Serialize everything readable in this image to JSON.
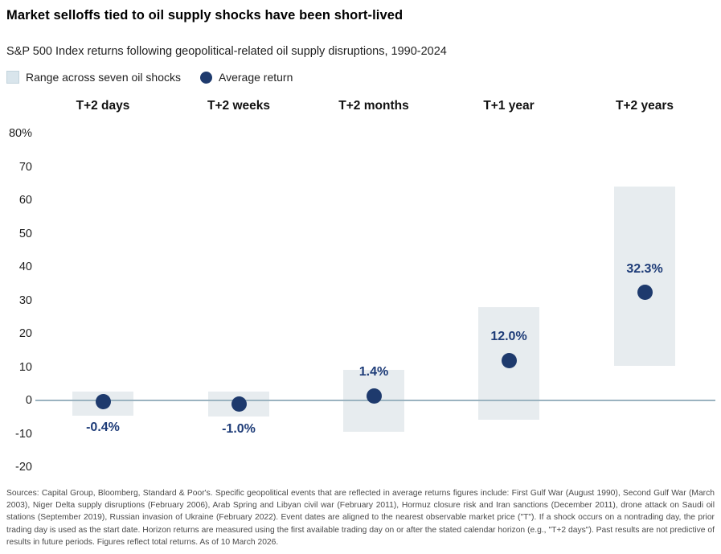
{
  "header": {
    "title": "Market selloffs tied to oil supply shocks have been short-lived",
    "subtitle": "S&P 500 Index returns following geopolitical-related oil supply disruptions, 1990-2024"
  },
  "legend": {
    "range_label": "Range across seven oil shocks",
    "average_label": "Average return"
  },
  "chart_data": {
    "type": "bar",
    "subtype": "floating-range-bar-with-average-points",
    "title": "S&P 500 Index returns following geopolitical-related oil supply disruptions, 1990-2024",
    "categories": [
      "T+2 days",
      "T+2 weeks",
      "T+2 months",
      "T+1 year",
      "T+2 years"
    ],
    "series": [
      {
        "name": "Range across seven oil shocks",
        "role": "range",
        "low": [
          -4.6,
          -4.8,
          -9.4,
          -5.8,
          10.4
        ],
        "high": [
          2.6,
          2.6,
          9.2,
          28.0,
          64.1
        ]
      },
      {
        "name": "Average return",
        "role": "point",
        "values": [
          -0.4,
          -1.0,
          1.4,
          12.0,
          32.3
        ]
      }
    ],
    "point_labels": [
      "-0.4%",
      "-1.0%",
      "1.4%",
      "12.0%",
      "32.3%"
    ],
    "y_ticks": [
      {
        "label": "80%",
        "value": 80
      },
      {
        "label": "70",
        "value": 70
      },
      {
        "label": "60",
        "value": 60
      },
      {
        "label": "50",
        "value": 50
      },
      {
        "label": "40",
        "value": 40
      },
      {
        "label": "30",
        "value": 30
      },
      {
        "label": "20",
        "value": 20
      },
      {
        "label": "10",
        "value": 10
      },
      {
        "label": "0",
        "value": 0
      },
      {
        "label": "-10",
        "value": -10
      },
      {
        "label": "-20",
        "value": -20
      }
    ],
    "ylim": [
      -20,
      80
    ],
    "ylabel": "",
    "xlabel": "",
    "grid": false,
    "zero_baseline": true,
    "legend_position": "top-left",
    "colors": {
      "range_fill": "#e7ecef",
      "legend_swatch": "#d9e5ec",
      "average_dot": "#1e3a6d",
      "value_label": "#1e3c78",
      "zero_line": "#9bb3c0"
    }
  },
  "footnote": {
    "text": "Sources: Capital Group, Bloomberg, Standard & Poor's. Specific geopolitical events that are reflected in average returns figures include: First Gulf War (August 1990), Second Gulf War (March 2003), Niger Delta supply disruptions (February 2006), Arab Spring and Libyan civil war (February 2011), Hormuz closure risk and Iran sanctions (December 2011), drone attack on Saudi oil stations (September 2019), Russian invasion of Ukraine (February 2022). Event dates are aligned to the nearest observable market price (\"T\"). If a shock occurs on a nontrading day, the prior trading day is used as the start date. Horizon returns are measured using the first available trading day on or after the stated calendar horizon (e.g., \"T+2 days\"). Past results are not predictive of results in future periods. Figures reflect total returns. As of 10 March 2026."
  }
}
